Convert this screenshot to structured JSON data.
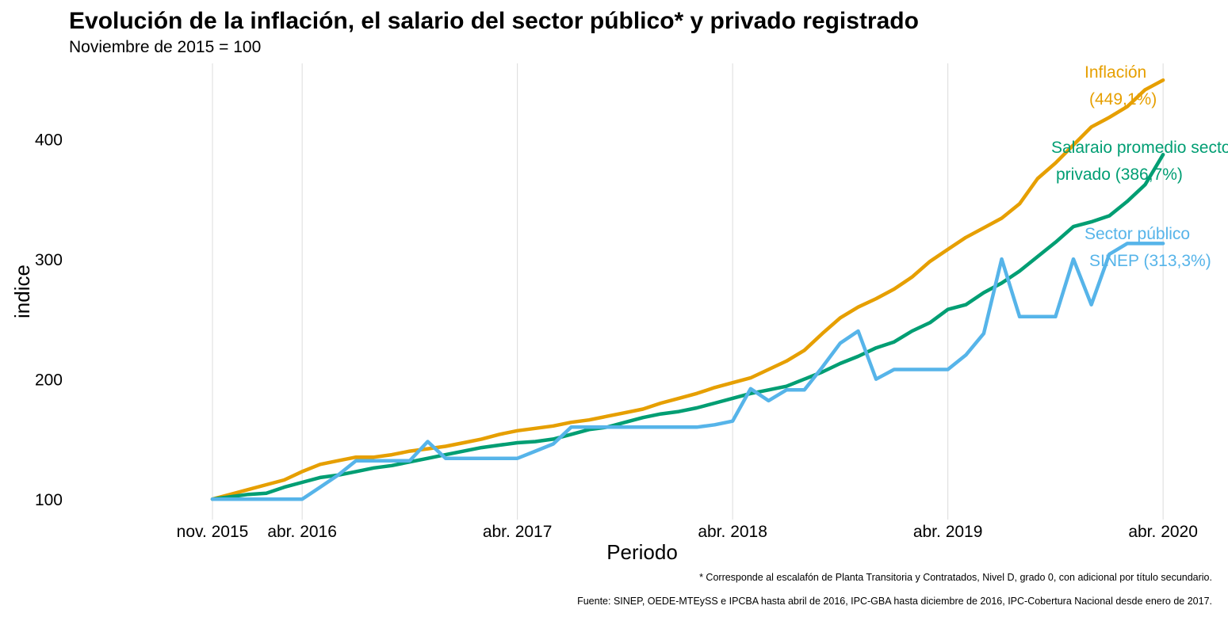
{
  "chart_data": {
    "type": "line",
    "title": "Evolución de la inflación, el salario del sector público* y privado registrado",
    "subtitle": "Noviembre de 2015 = 100",
    "xlabel": "Periodo",
    "ylabel": "indice",
    "x_ticks": [
      "nov. 2015",
      "abr. 2016",
      "abr. 2017",
      "abr. 2018",
      "abr. 2019",
      "abr. 2020"
    ],
    "x_tick_months": [
      0,
      5,
      17,
      29,
      41,
      53
    ],
    "y_ticks": [
      "100",
      "200",
      "300",
      "400"
    ],
    "y_tick_values": [
      100,
      200,
      300,
      400
    ],
    "ylim": [
      83,
      463
    ],
    "x_month_range": [
      -8,
      56
    ],
    "grid": "vertical major lines",
    "series": [
      {
        "color": "#E69F00",
        "label_lines": [
          "Inflación",
          "(449,1%)"
        ],
        "months": [
          0,
          1,
          2,
          3,
          4,
          5,
          6,
          7,
          8,
          9,
          10,
          11,
          12,
          13,
          14,
          15,
          16,
          17,
          18,
          19,
          20,
          21,
          22,
          23,
          24,
          25,
          26,
          27,
          28,
          29,
          30,
          31,
          32,
          33,
          34,
          35,
          36,
          37,
          38,
          39,
          40,
          41,
          42,
          43,
          44,
          45,
          46,
          47,
          48,
          49,
          50,
          51,
          52,
          53
        ],
        "values": [
          100,
          104,
          108,
          112,
          116,
          123,
          129,
          132,
          135,
          135,
          137,
          140,
          142,
          144,
          147,
          150,
          154,
          157,
          159,
          161,
          164,
          166,
          169,
          172,
          175,
          180,
          184,
          188,
          193,
          197,
          201,
          208,
          215,
          224,
          238,
          251,
          260,
          267,
          275,
          285,
          298,
          308,
          318,
          326,
          334,
          346,
          367,
          380,
          395,
          410,
          418,
          427,
          441,
          449
        ]
      },
      {
        "color": "#009E73",
        "label_lines": [
          "Salaraio promedio sector",
          "privado (386,7%)"
        ],
        "months": [
          0,
          1,
          2,
          3,
          4,
          5,
          6,
          7,
          8,
          9,
          10,
          11,
          12,
          13,
          14,
          15,
          16,
          17,
          18,
          19,
          20,
          21,
          22,
          23,
          24,
          25,
          26,
          27,
          28,
          29,
          30,
          31,
          32,
          33,
          34,
          35,
          36,
          37,
          38,
          39,
          40,
          41,
          42,
          43,
          44,
          45,
          46,
          47,
          48,
          49,
          50,
          51,
          52,
          53
        ],
        "values": [
          100,
          102,
          104,
          105,
          110,
          114,
          118,
          120,
          123,
          126,
          128,
          131,
          134,
          137,
          140,
          143,
          145,
          147,
          148,
          150,
          154,
          158,
          160,
          164,
          168,
          171,
          173,
          176,
          180,
          184,
          188,
          191,
          194,
          200,
          206,
          213,
          219,
          226,
          231,
          240,
          247,
          258,
          262,
          272,
          280,
          290,
          302,
          314,
          327,
          331,
          336,
          348,
          362,
          387
        ]
      },
      {
        "color": "#56B4E9",
        "label_lines": [
          "Sector público",
          "SINEP (313,3%)"
        ],
        "months": [
          0,
          1,
          2,
          3,
          4,
          5,
          6,
          7,
          8,
          9,
          10,
          11,
          12,
          13,
          14,
          15,
          16,
          17,
          18,
          19,
          20,
          21,
          22,
          23,
          24,
          25,
          26,
          27,
          28,
          29,
          30,
          31,
          32,
          33,
          34,
          35,
          36,
          37,
          38,
          39,
          40,
          41,
          42,
          43,
          44,
          45,
          46,
          47,
          48,
          49,
          50,
          51,
          52,
          53
        ],
        "values": [
          100,
          100,
          100,
          100,
          100,
          100,
          110,
          120,
          132,
          132,
          132,
          132,
          148,
          134,
          134,
          134,
          134,
          134,
          140,
          146,
          160,
          160,
          160,
          160,
          160,
          160,
          160,
          160,
          162,
          165,
          192,
          182,
          191,
          191,
          210,
          230,
          240,
          200,
          208,
          208,
          208,
          208,
          220,
          238,
          300,
          252,
          252,
          252,
          300,
          262,
          304,
          313,
          313,
          313
        ]
      }
    ],
    "footnotes": [
      "* Corresponde al escalafón de Planta Transitoria y Contratados, Nivel D, grado 0, con adicional por título secundario.",
      "Fuente: SINEP, OEDE-MTEySS e IPCBA hasta abril de 2016, IPC-GBA hasta diciembre de 2016, IPC-Cobertura Nacional desde enero de 2017."
    ]
  }
}
